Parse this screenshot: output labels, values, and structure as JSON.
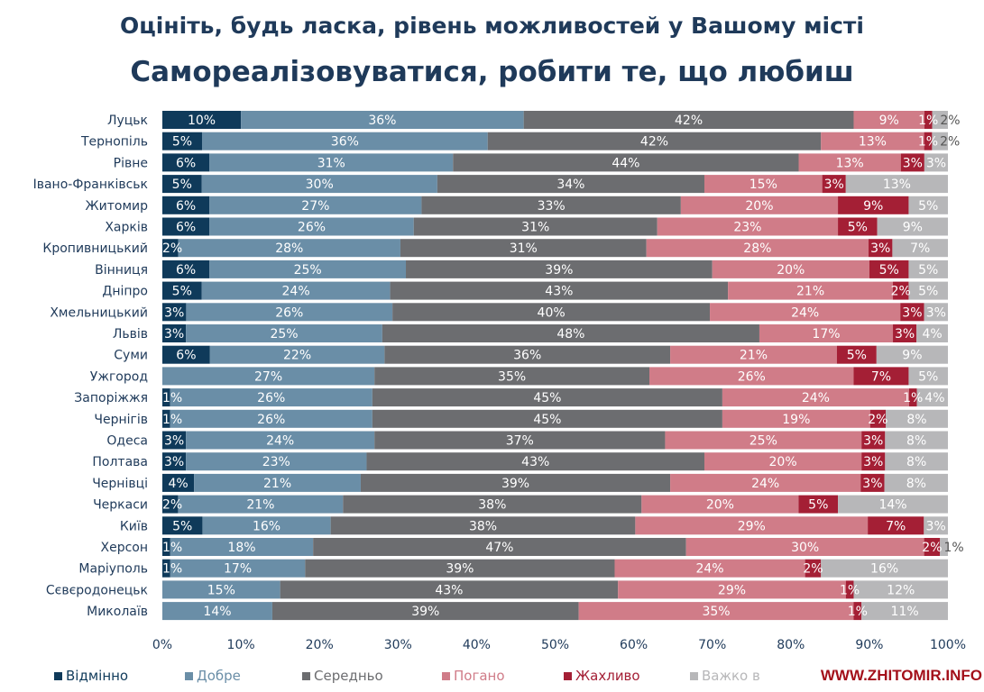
{
  "title": "Оцініть, будь ласка, рівень можливостей у Вашому місті",
  "subtitle": "Самореалізовуватися, робити те, що любиш",
  "watermark": "WWW.ZHITOMIR.INFO",
  "chart_data": {
    "type": "bar",
    "orientation": "horizontal-stacked-100",
    "xlim": [
      0,
      100
    ],
    "xticks": [
      "0%",
      "10%",
      "20%",
      "30%",
      "40%",
      "50%",
      "60%",
      "70%",
      "80%",
      "90%",
      "100%"
    ],
    "legend_position": "bottom",
    "series": [
      {
        "name": "Відмінно",
        "color": "#0f3a5a"
      },
      {
        "name": "Добре",
        "color": "#6a8ea7"
      },
      {
        "name": "Середньо",
        "color": "#6c6d70"
      },
      {
        "name": "Погано",
        "color": "#d07c88"
      },
      {
        "name": "Жахливо",
        "color": "#a41f35"
      },
      {
        "name": "Важко в",
        "color": "#b7b7b9"
      }
    ],
    "categories": [
      "Луцьк",
      "Тернопіль",
      "Рівне",
      "Івано-Франківськ",
      "Житомир",
      "Харків",
      "Кропивницький",
      "Вінниця",
      "Дніпро",
      "Хмельницький",
      "Львів",
      "Суми",
      "Ужгород",
      "Запоріжжя",
      "Чернігів",
      "Одеса",
      "Полтава",
      "Чернівці",
      "Черкаси",
      "Київ",
      "Херсон",
      "Маріуполь",
      "Сєвєродонецьк",
      "Миколаїв"
    ],
    "values": [
      [
        10,
        36,
        42,
        9,
        1,
        2
      ],
      [
        5,
        36,
        42,
        13,
        1,
        2
      ],
      [
        6,
        31,
        44,
        13,
        3,
        3
      ],
      [
        5,
        30,
        34,
        15,
        3,
        13
      ],
      [
        6,
        27,
        33,
        20,
        9,
        5
      ],
      [
        6,
        26,
        31,
        23,
        5,
        9
      ],
      [
        2,
        28,
        31,
        28,
        3,
        7
      ],
      [
        6,
        25,
        39,
        20,
        5,
        5
      ],
      [
        5,
        24,
        43,
        21,
        2,
        5
      ],
      [
        3,
        26,
        40,
        24,
        3,
        3
      ],
      [
        3,
        25,
        48,
        17,
        3,
        4
      ],
      [
        6,
        22,
        36,
        21,
        5,
        9
      ],
      [
        0,
        27,
        35,
        26,
        7,
        5
      ],
      [
        1,
        26,
        45,
        24,
        1,
        4
      ],
      [
        1,
        26,
        45,
        19,
        2,
        8
      ],
      [
        3,
        24,
        37,
        25,
        3,
        8
      ],
      [
        3,
        23,
        43,
        20,
        3,
        8
      ],
      [
        4,
        21,
        39,
        24,
        3,
        8
      ],
      [
        2,
        21,
        38,
        20,
        5,
        14
      ],
      [
        5,
        16,
        38,
        29,
        7,
        3
      ],
      [
        1,
        18,
        47,
        30,
        2,
        1
      ],
      [
        1,
        17,
        39,
        24,
        2,
        16
      ],
      [
        0,
        15,
        43,
        29,
        1,
        12
      ],
      [
        0,
        14,
        39,
        35,
        1,
        11
      ]
    ]
  }
}
